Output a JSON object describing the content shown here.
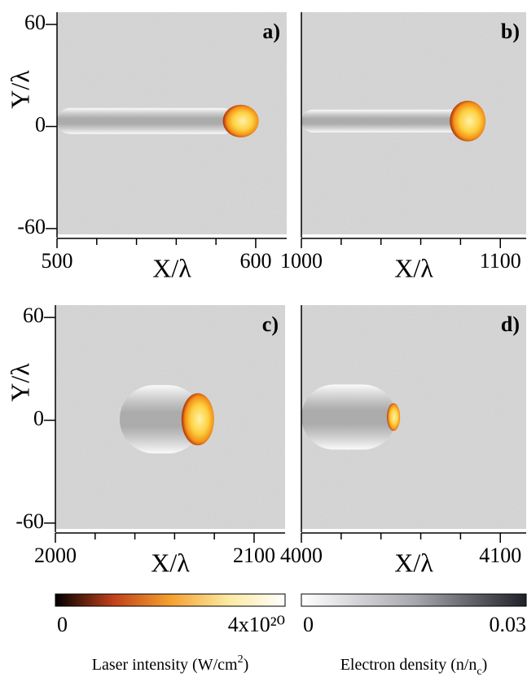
{
  "chart_data": [
    {
      "type": "image",
      "panel_label": "a)",
      "xlabel": "X/λ",
      "ylabel": "Y/λ",
      "xlim": [
        500,
        615.6
      ],
      "xticks": [
        500,
        600
      ],
      "xminorticks": [
        520,
        540,
        560,
        580
      ],
      "ylim": [
        -63.4,
        67.2
      ],
      "yticks": [
        60,
        0,
        -60
      ]
    },
    {
      "type": "image",
      "panel_label": "b)",
      "xlabel": "X/λ",
      "xlim": [
        1000,
        1113
      ],
      "xticks": [
        1000,
        1100
      ],
      "xminorticks": [
        1020,
        1040,
        1060,
        1080
      ],
      "ylim": [
        -63.4,
        67.2
      ]
    },
    {
      "type": "image",
      "panel_label": "c)",
      "xlabel": "X/λ",
      "ylabel": "Y/λ",
      "xlim": [
        2000,
        2115.6
      ],
      "xticks": [
        2000,
        2100
      ],
      "xminorticks": [
        2020,
        2040,
        2060,
        2080
      ],
      "ylim": [
        -63.4,
        67.2
      ],
      "yticks": [
        60,
        0,
        -60
      ]
    },
    {
      "type": "image",
      "panel_label": "d)",
      "xlabel": "X/λ",
      "xlim": [
        4000,
        4113
      ],
      "xticks": [
        4000,
        4100
      ],
      "xminorticks": [
        4020,
        4040,
        4060,
        4080
      ],
      "ylim": [
        -63.4,
        67.2
      ]
    }
  ],
  "colorbars": [
    {
      "label_parts": [
        "Laser intensity (W/cm",
        "2",
        ")"
      ],
      "label_script": "super",
      "lim": [
        0,
        4e+20
      ],
      "ticks": [
        0,
        {
          "value": 4e+20,
          "label": "4x10²⁰"
        }
      ],
      "colors": [
        "#000000",
        "#c0401a",
        "#f5a030",
        "#fbe9a0",
        "#ffffff"
      ]
    },
    {
      "label_parts": [
        "Electron density (n/n",
        "c",
        ")"
      ],
      "label_script": "sub",
      "lim": [
        0,
        0.03
      ],
      "ticks": [
        0,
        0.03
      ],
      "colors": [
        "#ffffff",
        "#a8a8b0",
        "#202028"
      ]
    }
  ]
}
